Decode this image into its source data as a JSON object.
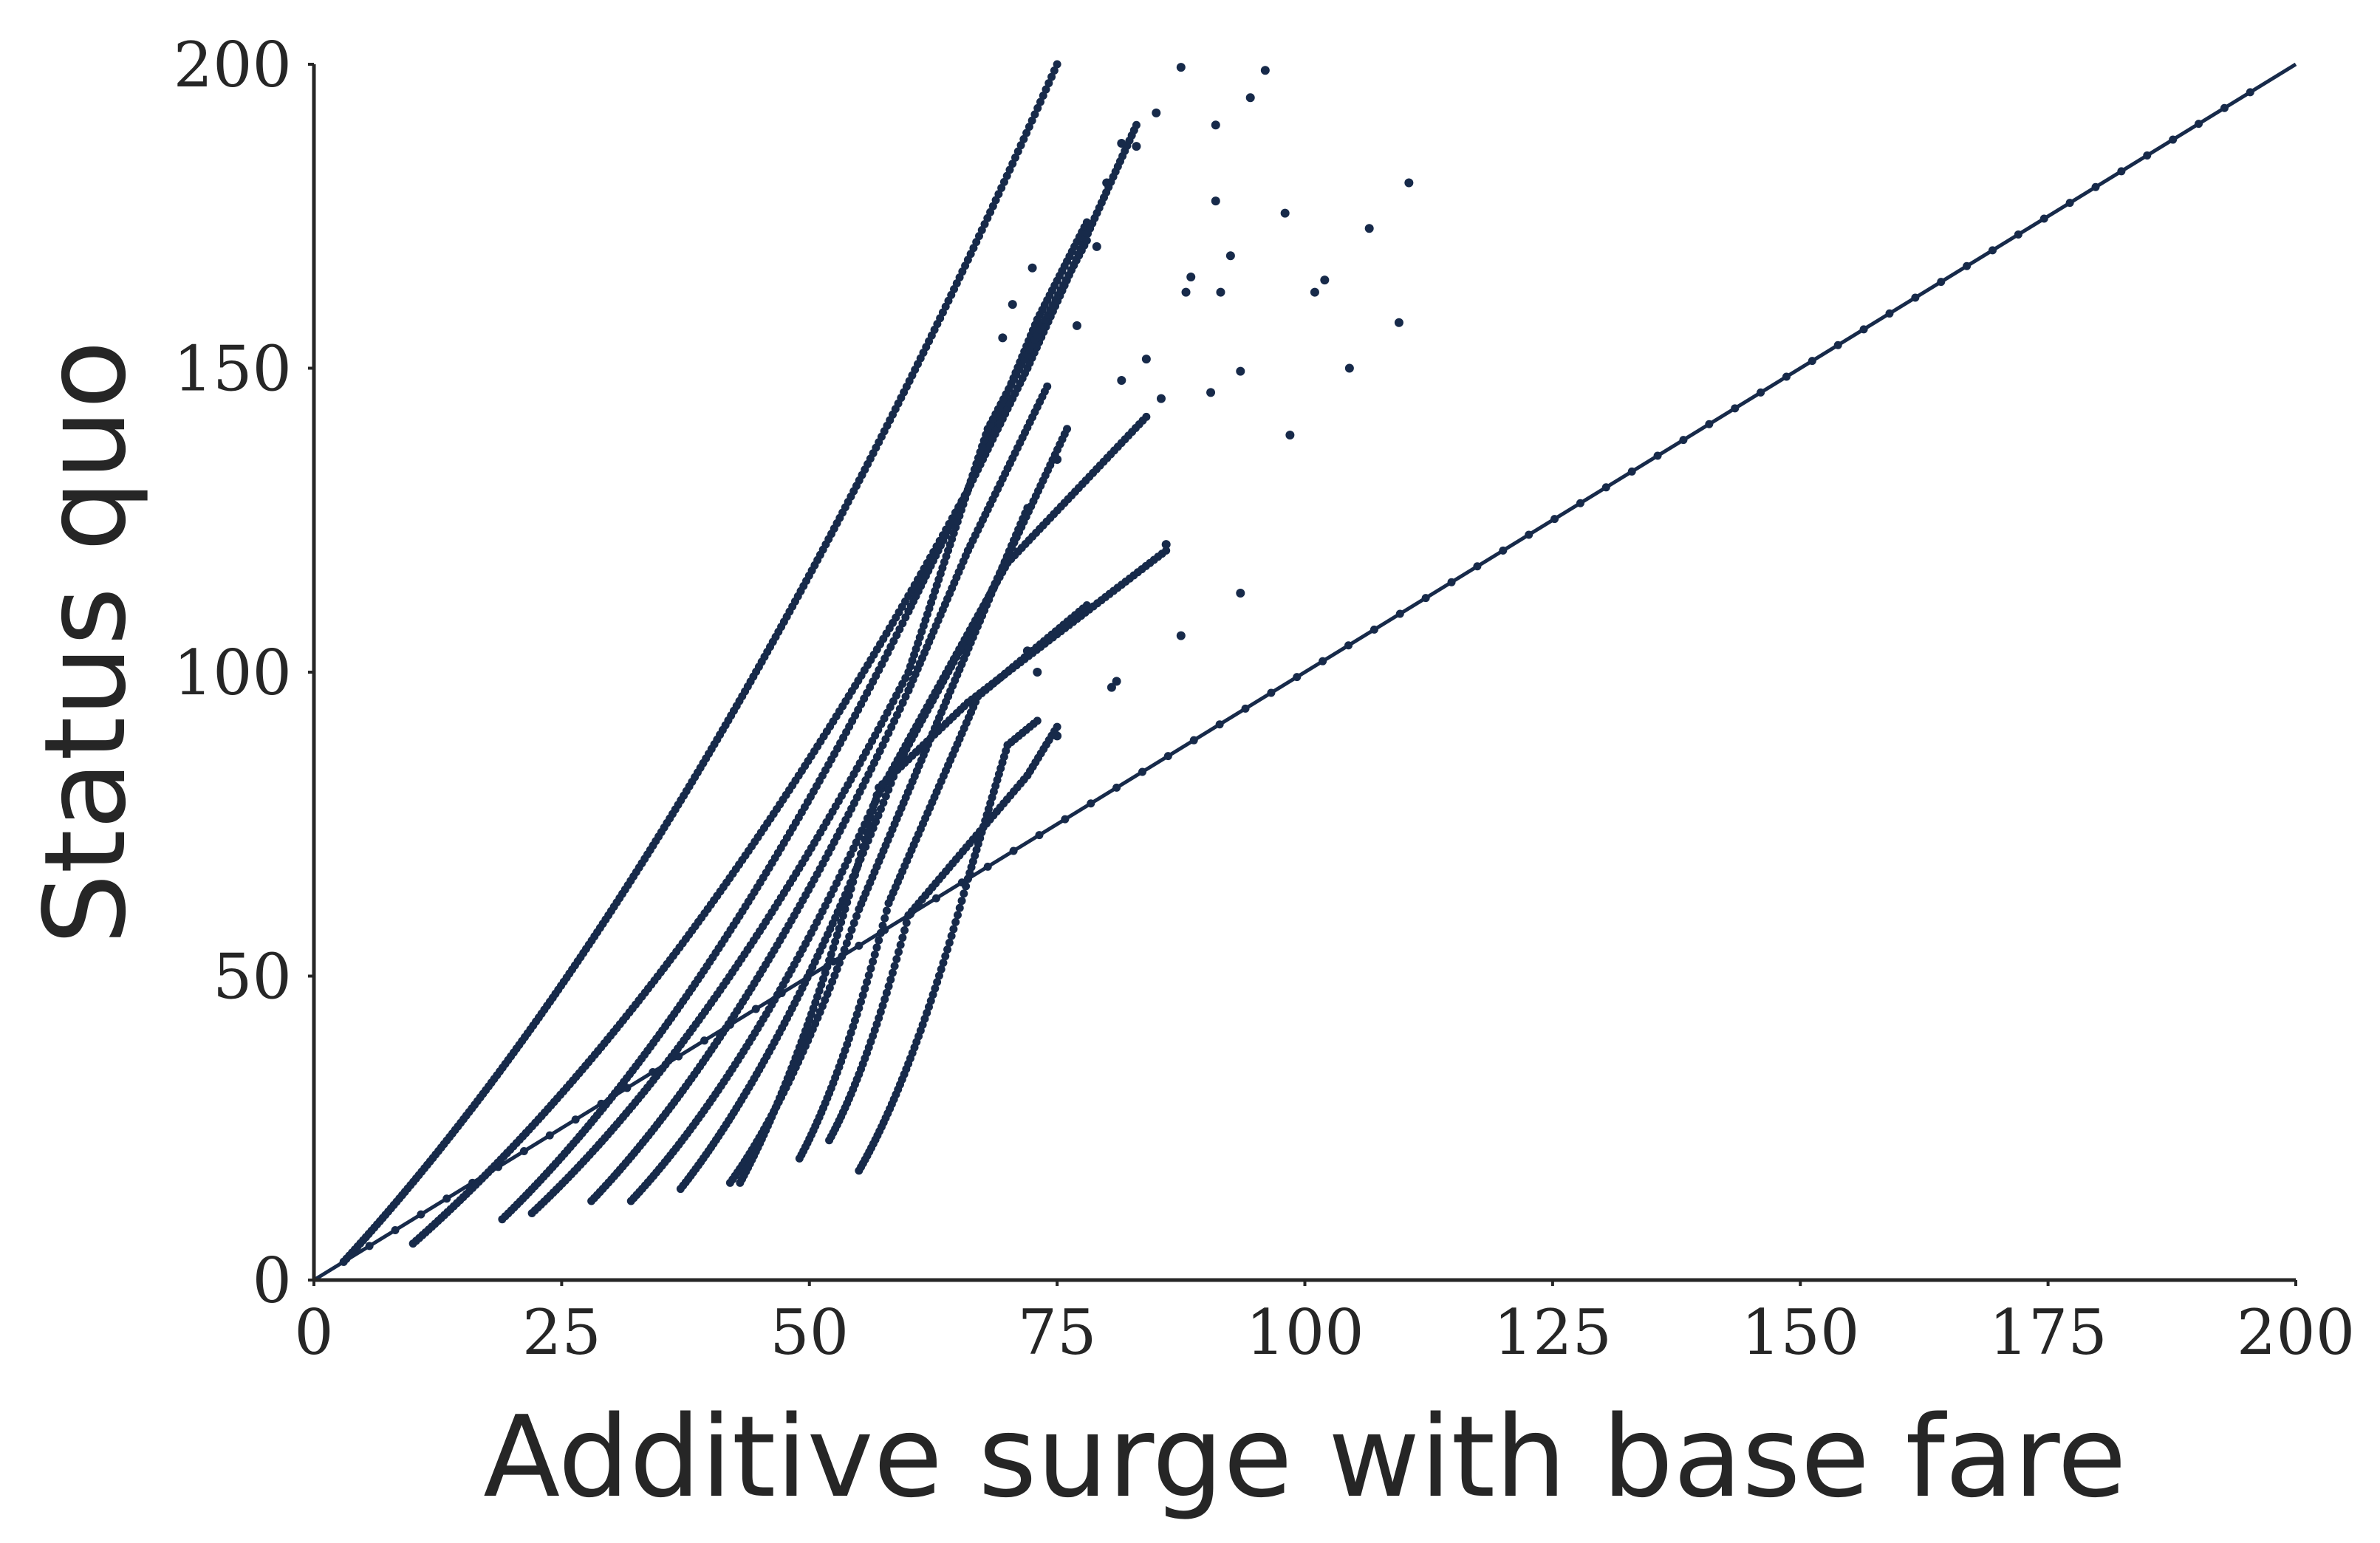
{
  "chart_data": {
    "type": "scatter",
    "title": "",
    "xlabel": "Additive surge with base fare",
    "ylabel": "Status quo",
    "xlim": [
      0,
      200
    ],
    "ylim": [
      0,
      200
    ],
    "xticks": [
      "0",
      "25",
      "50",
      "75",
      "100",
      "125",
      "150",
      "175",
      "200"
    ],
    "yticks": [
      "0",
      "50",
      "100",
      "150",
      "200"
    ],
    "grid": false,
    "legend": "none",
    "point_color": "#172a4a",
    "series": [
      {
        "name": "",
        "diagonal": [
          [
            0,
            0
          ],
          [
            200,
            200
          ]
        ],
        "points": [
          [
            110.5,
            180.5
          ],
          [
            106.5,
            173
          ],
          [
            109.5,
            157.5
          ],
          [
            104.5,
            150
          ],
          [
            102,
            164.5
          ],
          [
            101,
            162.5
          ],
          [
            98,
            175.5
          ],
          [
            98.5,
            139
          ],
          [
            93.5,
            149.5
          ],
          [
            91,
            177.5
          ],
          [
            91.5,
            162.5
          ],
          [
            90.5,
            146
          ],
          [
            92.5,
            168.5
          ],
          [
            94.5,
            194.5
          ],
          [
            96,
            199
          ],
          [
            91,
            190
          ],
          [
            88.5,
            165
          ],
          [
            88,
            162.5
          ],
          [
            87.5,
            199.5
          ],
          [
            85,
            192
          ],
          [
            83,
            186.5
          ],
          [
            81.5,
            187
          ],
          [
            86,
            121
          ],
          [
            93.5,
            113
          ],
          [
            87.5,
            106
          ],
          [
            81,
            98.5
          ],
          [
            80.5,
            97.5
          ],
          [
            84,
            151.5
          ],
          [
            85.5,
            145
          ],
          [
            81.5,
            148
          ],
          [
            80,
            180.5
          ],
          [
            79,
            170
          ],
          [
            70.5,
            160.5
          ],
          [
            72.5,
            166.5
          ],
          [
            75,
            89.5
          ],
          [
            72,
            103.5
          ],
          [
            73,
            100
          ],
          [
            77,
            157
          ],
          [
            75,
            135
          ],
          [
            69.5,
            155
          ]
        ],
        "curves": [
          {
            "from": [
              3,
              3
            ],
            "to": [
              75,
              200
            ]
          },
          {
            "from": [
              10,
              6
            ],
            "to": [
              66,
              130
            ],
            "to2": [
              73,
              158
            ],
            "to3": [
              78,
              174
            ]
          },
          {
            "from": [
              19,
              10
            ],
            "to": [
              60,
              110
            ],
            "to2": [
              72,
              150
            ],
            "to3": [
              83,
              190
            ]
          },
          {
            "from": [
              22,
              11
            ],
            "to": [
              60,
              100
            ],
            "to2": [
              68,
              140
            ],
            "to3": [
              78,
              171
            ]
          },
          {
            "from": [
              28,
              13
            ],
            "to": [
              60,
              97
            ],
            "to2": [
              66,
              120
            ],
            "to3": [
              74,
              147
            ]
          },
          {
            "from": [
              32,
              13
            ],
            "to": [
              57,
              80
            ],
            "to2": [
              70,
              118
            ],
            "to3": [
              84,
              142
            ]
          },
          {
            "from": [
              37,
              15
            ],
            "to": [
              59,
              85
            ],
            "to2": [
              68,
              112
            ],
            "to3": [
              76,
              140
            ]
          },
          {
            "from": [
              42,
              16
            ],
            "to": [
              55,
              61
            ],
            "to2": [
              64,
              96
            ],
            "to3": [
              72,
              127
            ]
          },
          {
            "from": [
              43,
              16
            ],
            "to": [
              57,
              81
            ],
            "to2": [
              66,
              95
            ],
            "to3": [
              86,
              120
            ]
          },
          {
            "from": [
              49,
              20
            ],
            "to": [
              58,
              62
            ],
            "to2": [
              67,
              96
            ],
            "to3": [
              78,
              111
            ]
          },
          {
            "from": [
              52,
              23
            ],
            "to": [
              60,
              60
            ],
            "to2": [
              72,
              83
            ],
            "to3": [
              75,
              91
            ]
          },
          {
            "from": [
              55,
              18
            ],
            "to": [
              66,
              66
            ],
            "to2": [
              70,
              88
            ],
            "to3": [
              73,
              92
            ]
          }
        ]
      }
    ]
  }
}
